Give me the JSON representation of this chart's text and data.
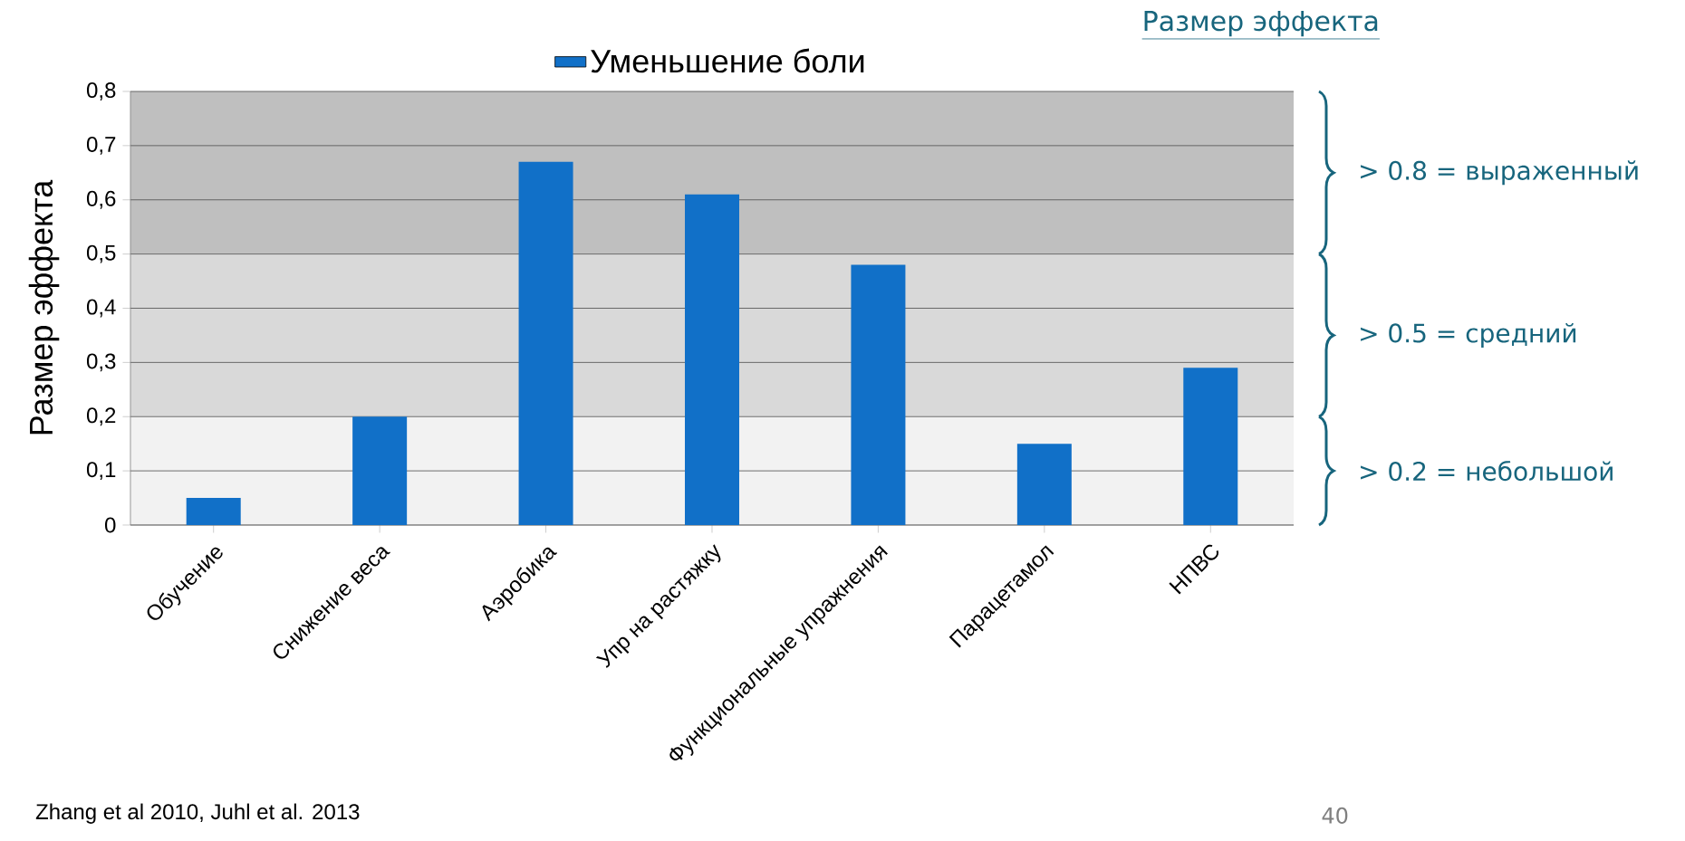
{
  "chart_data": {
    "type": "bar",
    "title": "Размер эффекта",
    "ylabel": "Размер эффекта",
    "categories": [
      "Обучение",
      "Снижение веса",
      "Аэробика",
      "Упр на растяжку",
      "Функциональные упражнения",
      "Парацетамол",
      "НПВС"
    ],
    "series": [
      {
        "name": "Уменьшение боли",
        "color": "#1170c8",
        "values": [
          0.05,
          0.2,
          0.67,
          0.61,
          0.48,
          0.15,
          0.29
        ]
      }
    ],
    "ylim": [
      0,
      0.8
    ],
    "yticks": [
      0,
      {
        "value": 0.1,
        "label": "0,1"
      },
      {
        "value": 0.2,
        "label": "0,2"
      },
      {
        "value": 0.3,
        "label": "0,3"
      },
      {
        "value": 0.4,
        "label": "0,4"
      },
      {
        "value": 0.5,
        "label": "0,5"
      },
      {
        "value": 0.6,
        "label": "0,6"
      },
      {
        "value": 0.7,
        "label": "0,7"
      },
      {
        "value": 0.8,
        "label": "0,8"
      }
    ],
    "bands": [
      {
        "axis": "y",
        "from": 0.5,
        "to": 0.8,
        "label": "> 0.8 = выраженный",
        "color": "#bfbfbf"
      },
      {
        "axis": "y",
        "from": 0.2,
        "to": 0.5,
        "label": "> 0.5 = средний",
        "color": "#d9d9d9"
      },
      {
        "axis": "y",
        "from": 0,
        "to": 0.2,
        "label": "> 0.2 = небольшой",
        "color": "#f2f2f2"
      }
    ],
    "grid": "y",
    "legend": "top",
    "annotations": [
      "Zhang et al 2010, Juhl et al. 2013",
      "40"
    ]
  }
}
